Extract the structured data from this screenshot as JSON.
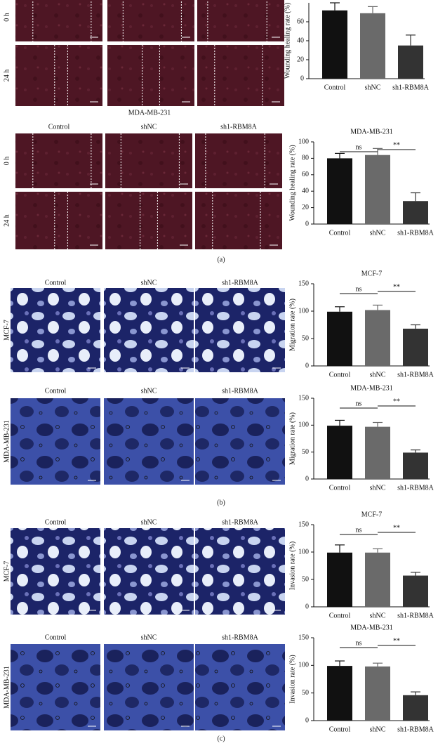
{
  "figure": {
    "groups": [
      {
        "rows": [
          "0 h",
          "24 h"
        ]
      },
      {
        "title": "MDA-MB-231",
        "columns": [
          "Control",
          "shNC",
          "sh1-RBM8A"
        ],
        "rows": [
          "0 h",
          "24 h"
        ]
      },
      {
        "columns": [
          "Control",
          "shNC",
          "sh1-RBM8A"
        ],
        "rows": [
          "MCF-7"
        ]
      },
      {
        "columns": [
          "Control",
          "shNC",
          "sh1-RBM8A"
        ],
        "rows": [
          "MDA-MB-231"
        ]
      },
      {
        "columns": [
          "Control",
          "shNC",
          "sh1-RBM8A"
        ],
        "rows": [
          "MCF-7"
        ]
      },
      {
        "columns": [
          "Control",
          "shNC",
          "sh1-RBM8A"
        ],
        "rows": [
          "MDA-MB-231"
        ]
      }
    ],
    "panel_labels": [
      "(a)",
      "(b)",
      "(c)"
    ]
  },
  "chart_data": [
    {
      "type": "bar",
      "ylabel": "Wounding healing rate (%)",
      "categories": [
        "Control",
        "shNC",
        "sh1-RBM8A"
      ],
      "values": [
        72,
        69,
        35
      ],
      "errors": [
        8,
        7,
        11
      ],
      "colors": [
        "#111111",
        "#6a6a6a",
        "#333333"
      ],
      "ylim": [
        0,
        80
      ],
      "yticks": [
        0,
        20,
        40,
        60
      ]
    },
    {
      "type": "bar",
      "title": "MDA-MB-231",
      "ylabel": "Wounding healing rate (%)",
      "categories": [
        "Control",
        "shNC",
        "sh1-RBM8A"
      ],
      "values": [
        80,
        84,
        28
      ],
      "errors": [
        6,
        8,
        10
      ],
      "colors": [
        "#111111",
        "#6a6a6a",
        "#333333"
      ],
      "ylim": [
        0,
        100
      ],
      "yticks": [
        0,
        20,
        40,
        60,
        80,
        100
      ],
      "annotations": [
        "ns",
        "**"
      ]
    },
    {
      "type": "bar",
      "title": "MCF-7",
      "ylabel": "Migration rate (%)",
      "categories": [
        "Control",
        "shNC",
        "sh1-RBM8A"
      ],
      "values": [
        99,
        102,
        68
      ],
      "errors": [
        9,
        9,
        7
      ],
      "colors": [
        "#111111",
        "#6a6a6a",
        "#333333"
      ],
      "ylim": [
        0,
        150
      ],
      "yticks": [
        0,
        50,
        100,
        150
      ],
      "annotations": [
        "ns",
        "**"
      ]
    },
    {
      "type": "bar",
      "title": "MDA-MB-231",
      "ylabel": "Migration rate (%)",
      "categories": [
        "Control",
        "shNC",
        "sh1-RBM8A"
      ],
      "values": [
        99,
        97,
        49
      ],
      "errors": [
        10,
        8,
        5
      ],
      "colors": [
        "#111111",
        "#6a6a6a",
        "#333333"
      ],
      "ylim": [
        0,
        150
      ],
      "yticks": [
        0,
        50,
        100,
        150
      ],
      "annotations": [
        "ns",
        "**"
      ]
    },
    {
      "type": "bar",
      "title": "MCF-7",
      "ylabel": "Invasion rate (%)",
      "categories": [
        "Control",
        "shNC",
        "sh1-RBM8A"
      ],
      "values": [
        99,
        99,
        57
      ],
      "errors": [
        14,
        7,
        6
      ],
      "colors": [
        "#111111",
        "#6a6a6a",
        "#333333"
      ],
      "ylim": [
        0,
        150
      ],
      "yticks": [
        0,
        50,
        100,
        150
      ],
      "annotations": [
        "ns",
        "**"
      ]
    },
    {
      "type": "bar",
      "title": "MDA-MB-231",
      "ylabel": "Invasion rate (%)",
      "categories": [
        "Control",
        "shNC",
        "sh1-RBM8A"
      ],
      "values": [
        99,
        98,
        46
      ],
      "errors": [
        9,
        6,
        6
      ],
      "colors": [
        "#111111",
        "#6a6a6a",
        "#333333"
      ],
      "ylim": [
        0,
        150
      ],
      "yticks": [
        0,
        50,
        100,
        150
      ],
      "annotations": [
        "ns",
        "**"
      ]
    }
  ]
}
